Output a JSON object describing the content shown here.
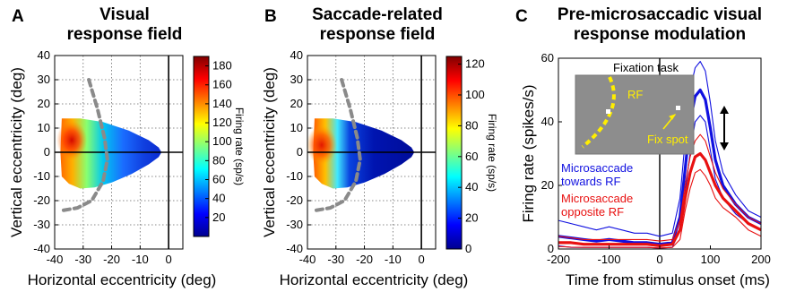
{
  "panels": [
    {
      "letter": "A",
      "title_lines": [
        "Visual",
        "response field"
      ],
      "xlabel": "Horizontal eccentricity (deg)",
      "ylabel": "Vertical eccentricity (deg)",
      "colorbar_label": "Firing rate (sp/s)"
    },
    {
      "letter": "B",
      "title_lines": [
        "Saccade-related",
        "response field"
      ],
      "xlabel": "Horizontal eccentricity (deg)",
      "ylabel": "Vertical eccentricity (deg)",
      "colorbar_label": "Firing rate (sp/s)"
    },
    {
      "letter": "C",
      "title_lines": [
        "Pre-microsaccadic visual",
        "response modulation"
      ],
      "xlabel": "Time from stimulus onset (ms)",
      "ylabel": "Firing rate (spikes/s)",
      "inset": {
        "title": "Fixation task",
        "rf_label": "RF",
        "fix_label": "Fix spot"
      },
      "legend": [
        {
          "lines": [
            "Microsaccade",
            "towards RF"
          ],
          "color": "#1010e0"
        },
        {
          "lines": [
            "Microsaccade",
            "opposite RF"
          ],
          "color": "#e81010"
        }
      ]
    }
  ],
  "chart_data": [
    {
      "type": "heatmap",
      "x_range": [
        -40,
        5
      ],
      "y_range": [
        -40,
        40
      ],
      "xticks": [
        -40,
        -30,
        -20,
        -10,
        0
      ],
      "yticks": [
        -40,
        -30,
        -20,
        -10,
        0,
        10,
        20,
        30,
        40
      ],
      "grid": true,
      "colorbar": {
        "range": [
          0,
          190
        ],
        "ticks": [
          20,
          40,
          60,
          80,
          100,
          120,
          140,
          160,
          180
        ]
      },
      "rf_boundary": [
        [
          -28,
          30
        ],
        [
          -25,
          18
        ],
        [
          -22.5,
          6
        ],
        [
          -21.5,
          -3
        ],
        [
          -23,
          -12
        ],
        [
          -27,
          -20
        ],
        [
          -32,
          -23
        ],
        [
          -37,
          -24
        ]
      ],
      "field_shape": [
        [
          -37.5,
          14
        ],
        [
          -31,
          14
        ],
        [
          -23,
          12.5
        ],
        [
          -14,
          9
        ],
        [
          -7,
          5
        ],
        [
          -3.5,
          2
        ],
        [
          -2.5,
          0
        ],
        [
          -3.5,
          -2
        ],
        [
          -7,
          -5
        ],
        [
          -13,
          -9
        ],
        [
          -20,
          -12.5
        ],
        [
          -26,
          -14.5
        ],
        [
          -31,
          -15
        ],
        [
          -35,
          -13
        ],
        [
          -37.5,
          -10
        ],
        [
          -38,
          0
        ]
      ],
      "hotspot": {
        "x": -34,
        "y": 5,
        "peak": 185
      }
    },
    {
      "type": "heatmap",
      "x_range": [
        -40,
        5
      ],
      "y_range": [
        -40,
        40
      ],
      "xticks": [
        -40,
        -30,
        -20,
        -10,
        0
      ],
      "yticks": [
        -40,
        -30,
        -20,
        -10,
        0,
        10,
        20,
        30,
        40
      ],
      "grid": true,
      "colorbar": {
        "range": [
          0,
          125
        ],
        "ticks": [
          0,
          20,
          40,
          60,
          80,
          100,
          120
        ]
      },
      "rf_boundary": [
        [
          -28,
          30
        ],
        [
          -25,
          18
        ],
        [
          -22.5,
          6
        ],
        [
          -21.5,
          -3
        ],
        [
          -23,
          -12
        ],
        [
          -27,
          -20
        ],
        [
          -32,
          -23
        ],
        [
          -37,
          -24
        ]
      ],
      "field_shape": [
        [
          -37.5,
          14
        ],
        [
          -31,
          14
        ],
        [
          -23,
          12.5
        ],
        [
          -14,
          9
        ],
        [
          -7,
          5
        ],
        [
          -3.5,
          2
        ],
        [
          -2.5,
          0
        ],
        [
          -3.5,
          -2
        ],
        [
          -7,
          -5
        ],
        [
          -13,
          -9
        ],
        [
          -20,
          -12.5
        ],
        [
          -26,
          -14.5
        ],
        [
          -31,
          -15
        ],
        [
          -35,
          -13
        ],
        [
          -37.5,
          -10
        ],
        [
          -38,
          0
        ]
      ],
      "hotspot": {
        "x": -35,
        "y": 3,
        "peak": 120
      }
    },
    {
      "type": "line",
      "x_range": [
        -200,
        200
      ],
      "y_range": [
        0,
        60
      ],
      "xticks": [
        -200,
        -100,
        0,
        100,
        200
      ],
      "yticks": [
        0,
        20,
        40,
        60
      ],
      "stimulus_onset": 0,
      "x": [
        -200,
        -175,
        -150,
        -125,
        -100,
        -75,
        -50,
        -25,
        0,
        25,
        40,
        50,
        60,
        70,
        80,
        90,
        100,
        110,
        125,
        150,
        175,
        200
      ],
      "series": [
        {
          "color": "#1010e0",
          "role": "mean",
          "values": [
            4,
            3.5,
            3,
            2.5,
            3,
            2.5,
            2,
            2,
            1.5,
            2,
            10,
            25,
            40,
            48,
            50,
            47,
            38,
            28,
            20,
            14,
            10,
            8
          ]
        },
        {
          "color": "#1010e0",
          "role": "upper",
          "values": [
            9,
            8,
            7,
            6,
            7,
            6,
            5,
            5,
            4,
            5,
            16,
            34,
            50,
            57,
            59,
            56,
            46,
            34,
            24,
            17,
            12,
            10
          ]
        },
        {
          "color": "#1010e0",
          "role": "lower",
          "values": [
            1,
            0.5,
            0.5,
            0.5,
            0.5,
            0.5,
            0.5,
            0.5,
            0.3,
            0.5,
            6,
            18,
            30,
            40,
            42,
            40,
            31,
            22,
            16,
            11,
            8,
            6
          ]
        },
        {
          "color": "#e81010",
          "role": "mean",
          "values": [
            2,
            2,
            1.5,
            1.5,
            1.5,
            1.5,
            1.5,
            1.5,
            1,
            1.5,
            6,
            16,
            24,
            29,
            30,
            28,
            24,
            20,
            16,
            12,
            8,
            6
          ]
        },
        {
          "color": "#e81010",
          "role": "upper",
          "values": [
            4,
            3.5,
            3,
            3,
            3,
            3,
            3,
            3,
            2.5,
            3,
            9,
            20,
            29,
            34,
            36,
            34,
            29,
            24,
            19,
            14,
            10,
            8
          ]
        },
        {
          "color": "#e81010",
          "role": "lower",
          "values": [
            0.8,
            0.6,
            0.5,
            0.5,
            0.5,
            0.5,
            0.5,
            0.5,
            0.3,
            0.5,
            3,
            12,
            19,
            24,
            25,
            23,
            20,
            16,
            13,
            10,
            6,
            4
          ]
        }
      ]
    }
  ]
}
